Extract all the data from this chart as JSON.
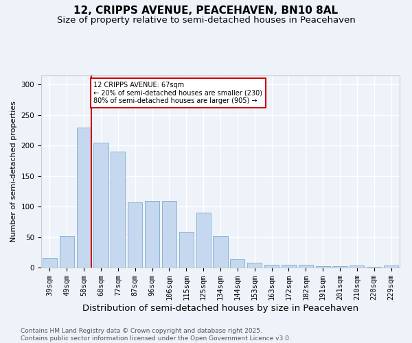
{
  "title": "12, CRIPPS AVENUE, PEACEHAVEN, BN10 8AL",
  "subtitle": "Size of property relative to semi-detached houses in Peacehaven",
  "xlabel": "Distribution of semi-detached houses by size in Peacehaven",
  "ylabel": "Number of semi-detached properties",
  "categories": [
    "39sqm",
    "49sqm",
    "58sqm",
    "68sqm",
    "77sqm",
    "87sqm",
    "96sqm",
    "106sqm",
    "115sqm",
    "125sqm",
    "134sqm",
    "144sqm",
    "153sqm",
    "163sqm",
    "172sqm",
    "182sqm",
    "191sqm",
    "201sqm",
    "210sqm",
    "220sqm",
    "229sqm"
  ],
  "values": [
    16,
    52,
    230,
    205,
    190,
    107,
    109,
    109,
    58,
    90,
    52,
    14,
    8,
    5,
    5,
    5,
    2,
    2,
    3,
    1,
    3
  ],
  "bar_color": "#c5d8ef",
  "bar_edge_color": "#7aadce",
  "vline_x_index": 2,
  "vline_color": "#cc0000",
  "annotation_text": "12 CRIPPS AVENUE: 67sqm\n← 20% of semi-detached houses are smaller (230)\n80% of semi-detached houses are larger (905) →",
  "annotation_box_edge_color": "#cc0000",
  "ylim": [
    0,
    315
  ],
  "yticks": [
    0,
    50,
    100,
    150,
    200,
    250,
    300
  ],
  "footer": "Contains HM Land Registry data © Crown copyright and database right 2025.\nContains public sector information licensed under the Open Government Licence v3.0.",
  "bg_color": "#eef2f9",
  "plot_bg_color": "#eef2f9",
  "grid_color": "#ffffff",
  "title_fontsize": 11,
  "subtitle_fontsize": 9.5,
  "xlabel_fontsize": 9.5,
  "ylabel_fontsize": 8,
  "tick_fontsize": 7.5,
  "footer_fontsize": 6.5
}
